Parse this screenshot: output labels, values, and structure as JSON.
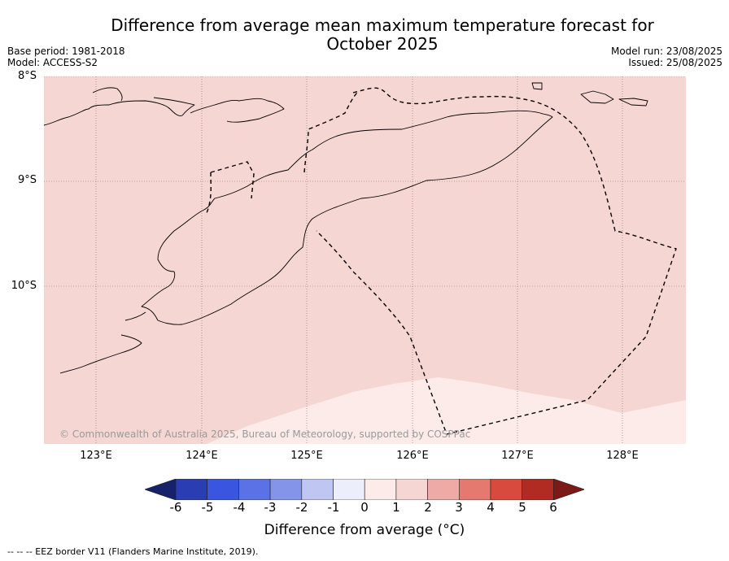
{
  "header": {
    "title_line1": "Difference from average mean maximum temperature forecast for",
    "title_line2": "October 2025",
    "base_period": "Base period: 1981-2018",
    "model": "Model: ACCESS-S2",
    "model_run": "Model run: 23/08/2025",
    "issued": "Issued: 25/08/2025"
  },
  "map": {
    "lat_labels": [
      "8°S",
      "9°S",
      "10°S"
    ],
    "lon_labels": [
      "123°E",
      "124°E",
      "125°E",
      "126°E",
      "127°E",
      "128°E"
    ],
    "copyright": "© Commonwealth of Australia 2025, Bureau of Meteorology, supported by COSPPac",
    "fill_colors": {
      "anomaly_1_to_2": "#f5d6d3",
      "anomaly_0_to_1": "#fcebe9"
    }
  },
  "colorbar": {
    "ticks": [
      "-6",
      "-5",
      "-4",
      "-3",
      "-2",
      "-1",
      "0",
      "1",
      "2",
      "3",
      "4",
      "5",
      "6"
    ],
    "colors": [
      "#16226a",
      "#2a3eb1",
      "#3a56e0",
      "#5b72e6",
      "#8494e8",
      "#bfc6f2",
      "#eceefb",
      "#fcebe9",
      "#f5d6d3",
      "#eeaba5",
      "#e5786f",
      "#d94a3e",
      "#b22b22",
      "#7b1a17"
    ],
    "label": "Difference from average (°C)"
  },
  "footer": {
    "legend_note": "-- -- -- EEZ border V11 (Flanders Marine Institute, 2019)."
  }
}
